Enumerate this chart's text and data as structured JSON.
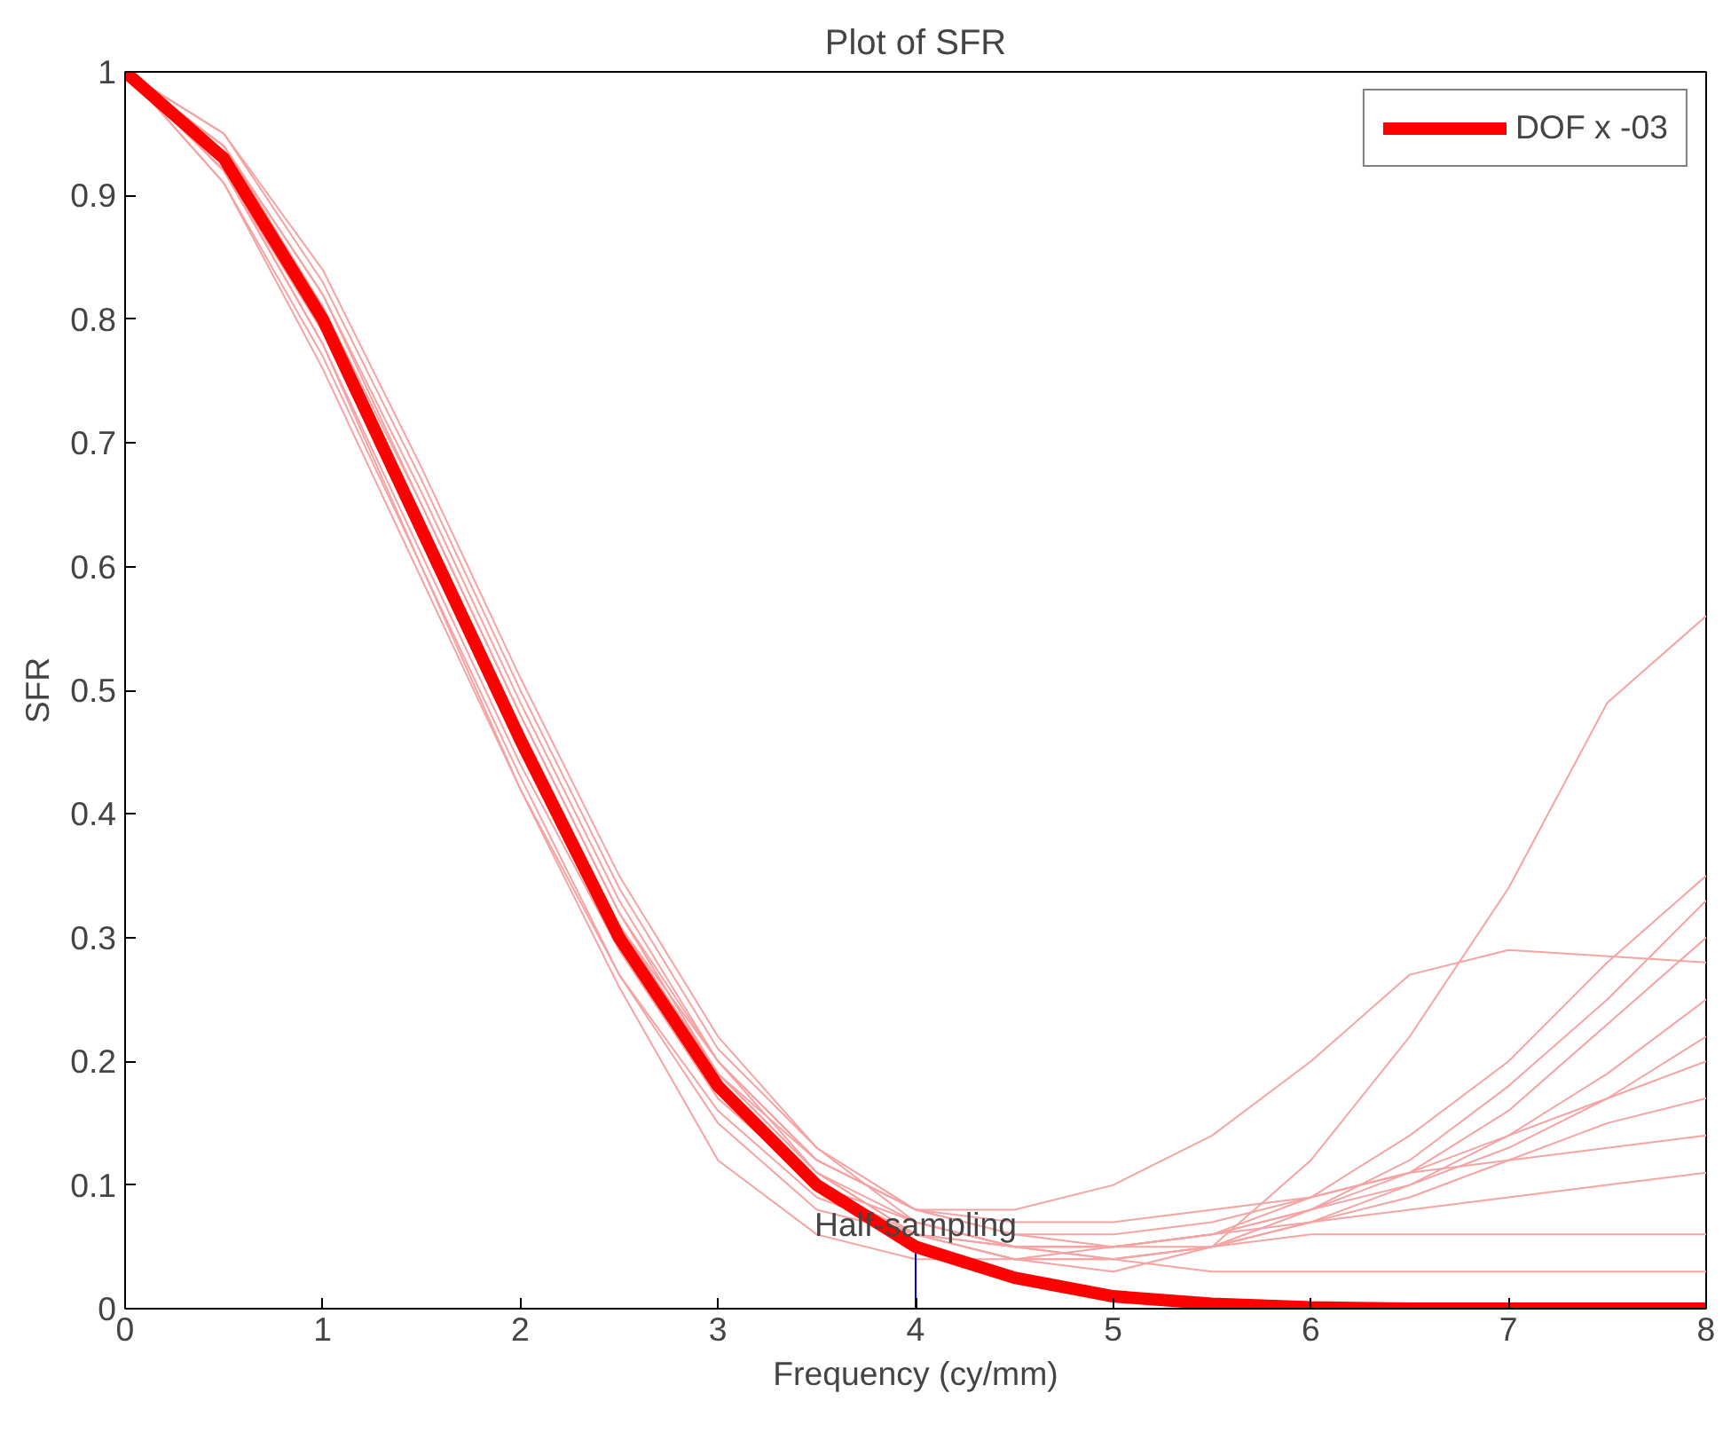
{
  "chart_data": {
    "type": "line",
    "title": "Plot of SFR",
    "xlabel": "Frequency (cy/mm)",
    "ylabel": "SFR",
    "x": [
      0,
      0.5,
      1,
      1.5,
      2,
      2.5,
      3,
      3.5,
      4,
      4.5,
      5,
      5.5,
      6,
      6.5,
      7,
      7.5,
      8
    ],
    "xlim": [
      0,
      8
    ],
    "xticks": [
      0,
      1,
      2,
      3,
      4,
      5,
      6,
      7,
      8
    ],
    "ylim": [
      0,
      1
    ],
    "yticks": [
      0,
      0.1,
      0.2,
      0.3,
      0.4,
      0.5,
      0.6,
      0.7,
      0.8,
      0.9,
      1
    ],
    "grid": false,
    "legend": "top right",
    "line_style": "solid",
    "marker": "none",
    "annotations": [
      {
        "text": "Half-sampling",
        "x": 4,
        "y": 0.05
      }
    ],
    "series": [
      {
        "color": "#f5a3a3",
        "values": [
          1,
          0.94,
          0.82,
          0.66,
          0.49,
          0.33,
          0.2,
          0.11,
          0.06,
          0.04,
          0.03,
          0.05,
          0.12,
          0.22,
          0.34,
          0.49,
          0.56
        ]
      },
      {
        "color": "#f5a3a3",
        "values": [
          1,
          0.92,
          0.79,
          0.62,
          0.45,
          0.3,
          0.19,
          0.12,
          0.08,
          0.08,
          0.1,
          0.14,
          0.2,
          0.27,
          0.29,
          0.285,
          0.28
        ]
      },
      {
        "color": "#f5a3a3",
        "values": [
          1,
          0.93,
          0.81,
          0.64,
          0.47,
          0.31,
          0.19,
          0.11,
          0.07,
          0.05,
          0.05,
          0.06,
          0.09,
          0.14,
          0.2,
          0.28,
          0.35
        ]
      },
      {
        "color": "#f5a3a3",
        "values": [
          1,
          0.92,
          0.78,
          0.61,
          0.44,
          0.29,
          0.17,
          0.1,
          0.07,
          0.05,
          0.04,
          0.05,
          0.08,
          0.12,
          0.18,
          0.25,
          0.33
        ]
      },
      {
        "color": "#f5a3a3",
        "values": [
          1,
          0.93,
          0.8,
          0.64,
          0.47,
          0.31,
          0.2,
          0.12,
          0.08,
          0.06,
          0.05,
          0.06,
          0.08,
          0.11,
          0.16,
          0.23,
          0.3
        ]
      },
      {
        "color": "#f5a3a3",
        "values": [
          1,
          0.94,
          0.82,
          0.65,
          0.48,
          0.32,
          0.19,
          0.11,
          0.06,
          0.04,
          0.04,
          0.05,
          0.07,
          0.1,
          0.14,
          0.19,
          0.25
        ]
      },
      {
        "color": "#f5a3a3",
        "values": [
          1,
          0.91,
          0.77,
          0.6,
          0.43,
          0.27,
          0.16,
          0.09,
          0.06,
          0.05,
          0.05,
          0.06,
          0.08,
          0.1,
          0.13,
          0.17,
          0.22
        ]
      },
      {
        "color": "#f5a3a3",
        "values": [
          1,
          0.95,
          0.83,
          0.67,
          0.5,
          0.34,
          0.21,
          0.13,
          0.08,
          0.06,
          0.06,
          0.07,
          0.09,
          0.11,
          0.14,
          0.17,
          0.2
        ]
      },
      {
        "color": "#f5a3a3",
        "values": [
          1,
          0.92,
          0.79,
          0.62,
          0.45,
          0.29,
          0.17,
          0.1,
          0.06,
          0.04,
          0.04,
          0.05,
          0.07,
          0.09,
          0.12,
          0.15,
          0.17
        ]
      },
      {
        "color": "#f5a3a3",
        "values": [
          1,
          0.94,
          0.81,
          0.65,
          0.48,
          0.32,
          0.2,
          0.12,
          0.08,
          0.07,
          0.07,
          0.08,
          0.09,
          0.11,
          0.12,
          0.13,
          0.14
        ]
      },
      {
        "color": "#f5a3a3",
        "values": [
          1,
          0.92,
          0.78,
          0.6,
          0.42,
          0.26,
          0.12,
          0.06,
          0.04,
          0.04,
          0.05,
          0.06,
          0.07,
          0.08,
          0.09,
          0.1,
          0.11
        ]
      },
      {
        "color": "#f5a3a3",
        "values": [
          1,
          0.91,
          0.76,
          0.59,
          0.42,
          0.27,
          0.15,
          0.08,
          0.06,
          0.05,
          0.05,
          0.05,
          0.06,
          0.06,
          0.06,
          0.06,
          0.06
        ]
      },
      {
        "color": "#f5a3a3",
        "values": [
          1,
          0.95,
          0.84,
          0.68,
          0.51,
          0.35,
          0.22,
          0.13,
          0.07,
          0.05,
          0.04,
          0.03,
          0.03,
          0.03,
          0.03,
          0.03,
          0.03
        ]
      },
      {
        "x": [
          4,
          4
        ],
        "color": "#0000ff",
        "values": [
          0,
          0.05
        ]
      },
      {
        "name": "DOF x -03",
        "color": "#ff0000",
        "values": [
          1,
          0.93,
          0.8,
          0.63,
          0.46,
          0.3,
          0.18,
          0.1,
          0.05,
          0.025,
          0.01,
          0.004,
          0.001,
          0,
          0,
          0,
          0
        ]
      }
    ]
  }
}
